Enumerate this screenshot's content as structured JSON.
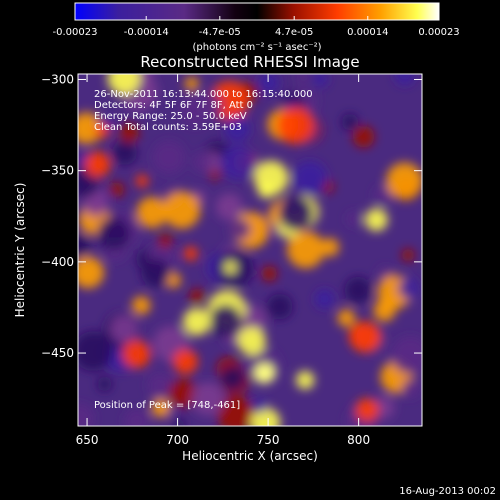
{
  "colorbar": {
    "tick_labels": [
      "-0.00023",
      "-0.00014",
      "-4.7e-05",
      "4.7e-05",
      "0.00014",
      "0.00023"
    ],
    "tick_values": [
      -0.00023,
      -0.00014,
      -4.7e-05,
      4.7e-05,
      0.00014,
      0.00023
    ],
    "range": [
      -0.00023,
      0.00023
    ],
    "unit_label": "(photons cm⁻² s⁻¹ asec⁻²)",
    "colors": [
      "#0000ff",
      "#3b1f9e",
      "#5a2a85",
      "#000000",
      "#9a1000",
      "#ff3c00",
      "#ffa000",
      "#ffff50",
      "#ffffff"
    ]
  },
  "chart_data": {
    "type": "heatmap",
    "title": "Reconstructed RHESSI Image",
    "xlabel": "Heliocentric X (arcsec)",
    "ylabel": "Heliocentric Y (arcsec)",
    "xlim": [
      645,
      835
    ],
    "ylim": [
      -490,
      -297
    ],
    "x_ticks": [
      650,
      700,
      750,
      800
    ],
    "y_ticks": [
      -300,
      -350,
      -400,
      -450
    ],
    "peak": [
      748,
      -461
    ],
    "annotations": [
      "26-Nov-2011 16:13:44.000 to 16:15:40.000",
      "Detectors: 4F 5F 6F 7F 8F, Att 0",
      "Energy Range: 25.0 - 50.0 keV",
      "Clean    Total counts: 3.59E+03"
    ],
    "peak_label": "Position of Peak = [748,-461]",
    "field_note": "clean-residual map: mixed positive (red/yellow) and negative (blue/purple) blobs"
  },
  "footer": {
    "timestamp": "16-Aug-2013 00:02"
  }
}
